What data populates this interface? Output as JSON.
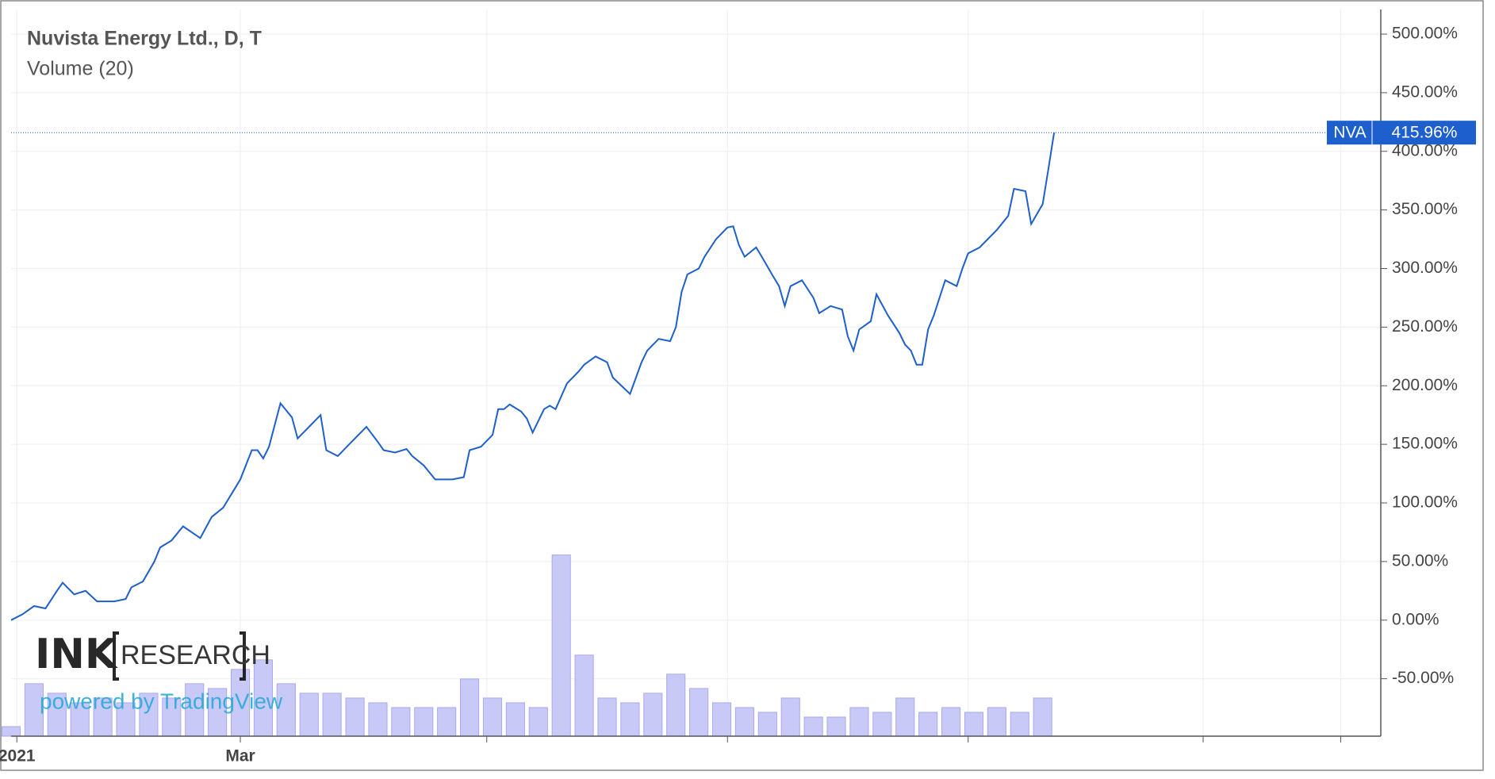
{
  "chart_data": {
    "type": "line",
    "title": "Nuvista Energy Ltd., D, T",
    "subtitle": "Volume (20)",
    "watermark": {
      "brand_left": "INK",
      "brand_right": "RESEARCH",
      "credit": "powered by TradingView"
    },
    "series": [
      {
        "name": "NVA",
        "color": "#1d5fcc",
        "x": [
          0,
          2,
          4,
          6,
          8,
          9,
          11,
          13,
          15,
          18,
          20,
          21,
          23,
          25,
          26,
          28,
          30,
          33,
          35,
          37,
          39,
          40,
          42,
          43,
          44,
          45,
          47,
          49,
          50,
          52,
          54,
          55,
          57,
          59,
          60,
          62,
          64,
          65,
          67,
          69,
          70,
          72,
          74,
          75,
          77,
          79,
          80,
          82,
          84,
          85,
          86,
          87,
          89,
          90,
          91,
          93,
          94,
          95,
          97,
          99,
          100,
          102,
          104,
          105,
          108,
          110,
          111,
          113,
          115,
          116,
          117,
          118,
          120,
          121,
          123,
          125,
          126,
          127,
          128,
          130,
          131,
          133,
          134,
          135,
          136,
          138,
          140,
          141,
          143,
          145,
          146,
          147,
          148,
          150,
          151,
          153,
          155,
          156,
          157,
          158,
          159,
          160,
          161,
          163,
          165,
          166,
          167,
          169,
          170,
          172,
          174,
          175,
          177,
          178,
          180,
          181,
          182
        ],
        "values": [
          0,
          5,
          12,
          10,
          25,
          32,
          22,
          25,
          16,
          16,
          18,
          28,
          33,
          50,
          62,
          68,
          80,
          70,
          88,
          96,
          112,
          120,
          145,
          145,
          138,
          148,
          185,
          173,
          155,
          165,
          175,
          145,
          140,
          150,
          155,
          165,
          152,
          145,
          143,
          146,
          140,
          132,
          120,
          120,
          120,
          122,
          145,
          148,
          158,
          180,
          180,
          184,
          178,
          172,
          160,
          180,
          183,
          180,
          202,
          212,
          218,
          225,
          220,
          207,
          193,
          220,
          230,
          240,
          238,
          250,
          280,
          295,
          300,
          310,
          325,
          335,
          336,
          320,
          310,
          318,
          310,
          293,
          285,
          268,
          285,
          290,
          275,
          262,
          268,
          265,
          242,
          230,
          248,
          255,
          278,
          260,
          245,
          235,
          230,
          218,
          218,
          248,
          260,
          290,
          285,
          300,
          313,
          318,
          323,
          333,
          345,
          368,
          366,
          338,
          355,
          385,
          416
        ]
      }
    ],
    "volume": {
      "color": "#c9c9f7",
      "x": [
        0,
        4,
        8,
        12,
        16,
        20,
        24,
        28,
        32,
        36,
        40,
        44,
        48,
        52,
        56,
        60,
        64,
        68,
        72,
        76,
        80,
        84,
        88,
        92,
        96,
        100,
        104,
        108,
        112,
        116,
        120,
        124,
        128,
        132,
        136,
        140,
        144,
        148,
        152,
        156,
        160,
        164,
        168,
        172,
        176,
        180
      ],
      "values": [
        10,
        55,
        45,
        35,
        40,
        35,
        45,
        40,
        55,
        50,
        70,
        80,
        55,
        45,
        45,
        40,
        35,
        30,
        30,
        30,
        60,
        40,
        35,
        30,
        190,
        85,
        40,
        35,
        45,
        65,
        50,
        35,
        30,
        25,
        40,
        20,
        20,
        30,
        25,
        40,
        25,
        30,
        25,
        30,
        25,
        40
      ],
      "vlim": [
        0,
        762
      ]
    },
    "last_value": {
      "symbol": "NVA",
      "value": 415.96,
      "label": "415.96%"
    },
    "xlim": [
      0,
      239
    ],
    "xticks": [
      {
        "value": 1,
        "label": "2021"
      },
      {
        "value": 40,
        "label": "Mar"
      },
      {
        "value": 83,
        "label": null
      },
      {
        "value": 125,
        "label": null
      },
      {
        "value": 167,
        "label": null
      },
      {
        "value": 208,
        "label": null
      },
      {
        "value": 232,
        "label": null
      }
    ],
    "ylim": [
      -99,
      521
    ],
    "yticks": [
      {
        "value": -50,
        "label": "-50.00%"
      },
      {
        "value": 0,
        "label": "0.00%"
      },
      {
        "value": 50,
        "label": "50.00%"
      },
      {
        "value": 100,
        "label": "100.00%"
      },
      {
        "value": 150,
        "label": "150.00%"
      },
      {
        "value": 200,
        "label": "200.00%"
      },
      {
        "value": 250,
        "label": "250.00%"
      },
      {
        "value": 300,
        "label": "300.00%"
      },
      {
        "value": 350,
        "label": "350.00%"
      },
      {
        "value": 400,
        "label": "400.00%"
      },
      {
        "value": 450,
        "label": "450.00%"
      },
      {
        "value": 500,
        "label": "500.00%"
      }
    ],
    "grid": true
  }
}
